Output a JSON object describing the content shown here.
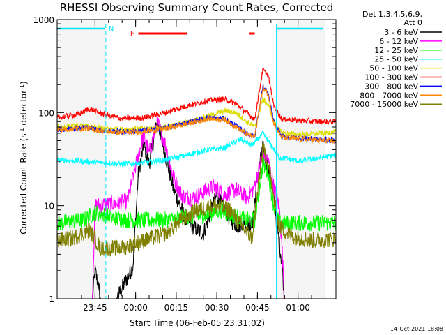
{
  "chart_data": {
    "type": "line",
    "title": "RHESSI Observing Summary Count Rates, Corrected",
    "xlabel": "Start Time (06-Feb-05 23:31:02)",
    "ylabel_parts": [
      "Corrected Count Rate (s",
      "-1",
      " detector",
      "-1",
      ")"
    ],
    "yscale": "log",
    "xlim_minutes": [
      0,
      103
    ],
    "ylim": [
      1,
      1000
    ],
    "y_tick_labels": [
      {
        "value": 1,
        "label": "1"
      },
      {
        "value": 10,
        "label": "10"
      },
      {
        "value": 100,
        "label": "100"
      },
      {
        "value": 1000,
        "label": "1000"
      }
    ],
    "x_tick_labels": [
      {
        "minute": 14,
        "label": "23:45"
      },
      {
        "minute": 29,
        "label": "00:00"
      },
      {
        "minute": 44,
        "label": "00:15"
      },
      {
        "minute": 59,
        "label": "00:30"
      },
      {
        "minute": 74,
        "label": "00:45"
      },
      {
        "minute": 89,
        "label": "01:00"
      }
    ],
    "legend": {
      "header": [
        "Det 1,3,4,5,6,9,",
        "Att 0"
      ],
      "placement": "right"
    },
    "series": [
      {
        "name": "3 - 6 keV",
        "color": "#000000",
        "points": [
          [
            0,
            1
          ],
          [
            13,
            1
          ],
          [
            14,
            2
          ],
          [
            15,
            1.5
          ],
          [
            16,
            1
          ],
          [
            18,
            1
          ],
          [
            22,
            1
          ],
          [
            28,
            2.2
          ],
          [
            30,
            22
          ],
          [
            32,
            45
          ],
          [
            34,
            28
          ],
          [
            37,
            80
          ],
          [
            40,
            35
          ],
          [
            43,
            15
          ],
          [
            46,
            9
          ],
          [
            48,
            7
          ],
          [
            50,
            6
          ],
          [
            54,
            5
          ],
          [
            57,
            9
          ],
          [
            59,
            13
          ],
          [
            61,
            10
          ],
          [
            64,
            7
          ],
          [
            67,
            6
          ],
          [
            69,
            7
          ],
          [
            72,
            6
          ],
          [
            74,
            20
          ],
          [
            76,
            42
          ],
          [
            78,
            25
          ],
          [
            80,
            15
          ],
          [
            81,
            7
          ],
          [
            83,
            2.5
          ],
          [
            84,
            1
          ],
          [
            103,
            1
          ]
        ]
      },
      {
        "name": "6 - 12 keV",
        "color": "#ff00ff",
        "points": [
          [
            0,
            1
          ],
          [
            13,
            1
          ],
          [
            14,
            10
          ],
          [
            20,
            10.5
          ],
          [
            26,
            11
          ],
          [
            30,
            35
          ],
          [
            32,
            58
          ],
          [
            34,
            36
          ],
          [
            37,
            80
          ],
          [
            40,
            45
          ],
          [
            43,
            20
          ],
          [
            46,
            13
          ],
          [
            50,
            12
          ],
          [
            54,
            14
          ],
          [
            58,
            16
          ],
          [
            62,
            13
          ],
          [
            66,
            15
          ],
          [
            70,
            12
          ],
          [
            73,
            16
          ],
          [
            76,
            37
          ],
          [
            78,
            30
          ],
          [
            80,
            16
          ],
          [
            82,
            10
          ],
          [
            83,
            4
          ],
          [
            84,
            1
          ],
          [
            103,
            1
          ]
        ]
      },
      {
        "name": "12 - 25 keV",
        "color": "#00ff00",
        "points": [
          [
            0,
            6.5
          ],
          [
            10,
            7
          ],
          [
            14,
            8.5
          ],
          [
            20,
            7.5
          ],
          [
            26,
            7
          ],
          [
            32,
            7
          ],
          [
            40,
            7
          ],
          [
            48,
            7.5
          ],
          [
            56,
            8
          ],
          [
            60,
            9
          ],
          [
            64,
            8
          ],
          [
            70,
            7
          ],
          [
            73,
            7
          ],
          [
            76,
            28
          ],
          [
            78,
            22
          ],
          [
            80,
            10
          ],
          [
            82,
            6.5
          ],
          [
            90,
            6.5
          ],
          [
            103,
            6.5
          ]
        ]
      },
      {
        "name": "25 - 50 keV",
        "color": "#00ffff",
        "points": [
          [
            0,
            31
          ],
          [
            10,
            30
          ],
          [
            16,
            29
          ],
          [
            24,
            28
          ],
          [
            32,
            29
          ],
          [
            40,
            31
          ],
          [
            48,
            35
          ],
          [
            56,
            40
          ],
          [
            62,
            42
          ],
          [
            68,
            52
          ],
          [
            72,
            44
          ],
          [
            76,
            60
          ],
          [
            79,
            45
          ],
          [
            82,
            33
          ],
          [
            90,
            30
          ],
          [
            98,
            33
          ],
          [
            103,
            35
          ]
        ]
      },
      {
        "name": "50 - 100 keV",
        "color": "#dddd00",
        "points": [
          [
            0,
            70
          ],
          [
            10,
            72
          ],
          [
            16,
            68
          ],
          [
            24,
            66
          ],
          [
            32,
            67
          ],
          [
            40,
            70
          ],
          [
            48,
            78
          ],
          [
            56,
            92
          ],
          [
            62,
            105
          ],
          [
            66,
            100
          ],
          [
            70,
            80
          ],
          [
            73,
            70
          ],
          [
            76,
            140
          ],
          [
            78,
            120
          ],
          [
            80,
            80
          ],
          [
            83,
            60
          ],
          [
            90,
            58
          ],
          [
            98,
            60
          ],
          [
            103,
            62
          ]
        ]
      },
      {
        "name": "100 - 300 keV",
        "color": "#ff0000",
        "points": [
          [
            0,
            88
          ],
          [
            8,
            96
          ],
          [
            12,
            110
          ],
          [
            16,
            98
          ],
          [
            24,
            86
          ],
          [
            32,
            88
          ],
          [
            40,
            100
          ],
          [
            48,
            118
          ],
          [
            56,
            135
          ],
          [
            62,
            140
          ],
          [
            66,
            125
          ],
          [
            70,
            100
          ],
          [
            73,
            85
          ],
          [
            76,
            290
          ],
          [
            78,
            250
          ],
          [
            80,
            120
          ],
          [
            83,
            85
          ],
          [
            90,
            82
          ],
          [
            98,
            80
          ],
          [
            103,
            80
          ]
        ]
      },
      {
        "name": "300 - 800 keV",
        "color": "#0000ff",
        "points": [
          [
            0,
            66
          ],
          [
            10,
            70
          ],
          [
            16,
            65
          ],
          [
            24,
            62
          ],
          [
            32,
            64
          ],
          [
            40,
            68
          ],
          [
            48,
            78
          ],
          [
            56,
            88
          ],
          [
            62,
            86
          ],
          [
            66,
            72
          ],
          [
            70,
            60
          ],
          [
            73,
            56
          ],
          [
            76,
            190
          ],
          [
            78,
            160
          ],
          [
            80,
            80
          ],
          [
            83,
            55
          ],
          [
            90,
            53
          ],
          [
            98,
            51
          ],
          [
            103,
            50
          ]
        ]
      },
      {
        "name": "800 - 7000 keV",
        "color": "#ff8800",
        "points": [
          [
            0,
            65
          ],
          [
            10,
            68
          ],
          [
            16,
            64
          ],
          [
            24,
            61
          ],
          [
            32,
            63
          ],
          [
            40,
            67
          ],
          [
            48,
            76
          ],
          [
            56,
            86
          ],
          [
            62,
            84
          ],
          [
            66,
            70
          ],
          [
            70,
            59
          ],
          [
            73,
            55
          ],
          [
            76,
            185
          ],
          [
            78,
            155
          ],
          [
            80,
            78
          ],
          [
            83,
            54
          ],
          [
            90,
            52
          ],
          [
            98,
            50
          ],
          [
            103,
            49
          ]
        ]
      },
      {
        "name": "7000 - 15000 keV",
        "color": "#808000",
        "points": [
          [
            0,
            4.2
          ],
          [
            6,
            4.5
          ],
          [
            12,
            5.5
          ],
          [
            16,
            3.5
          ],
          [
            24,
            3.5
          ],
          [
            32,
            4.2
          ],
          [
            40,
            5
          ],
          [
            46,
            7
          ],
          [
            52,
            9
          ],
          [
            58,
            10
          ],
          [
            64,
            9
          ],
          [
            68,
            6
          ],
          [
            72,
            4.5
          ],
          [
            76,
            40
          ],
          [
            78,
            30
          ],
          [
            80,
            12
          ],
          [
            82,
            6
          ],
          [
            86,
            4.8
          ],
          [
            94,
            4.2
          ],
          [
            103,
            4.4
          ]
        ]
      }
    ],
    "annotations": {
      "N_label": "N",
      "F_label": "F",
      "night_shading_minutes": [
        [
          0,
          18
        ],
        [
          81,
          99
        ]
      ],
      "flare_flag_segments_minutes": [
        [
          30,
          48
        ],
        [
          71,
          73
        ]
      ],
      "attenuator_dashed_lines_minutes": [
        18,
        99
      ]
    },
    "timestamp": "14-Oct-2021 18:08"
  }
}
